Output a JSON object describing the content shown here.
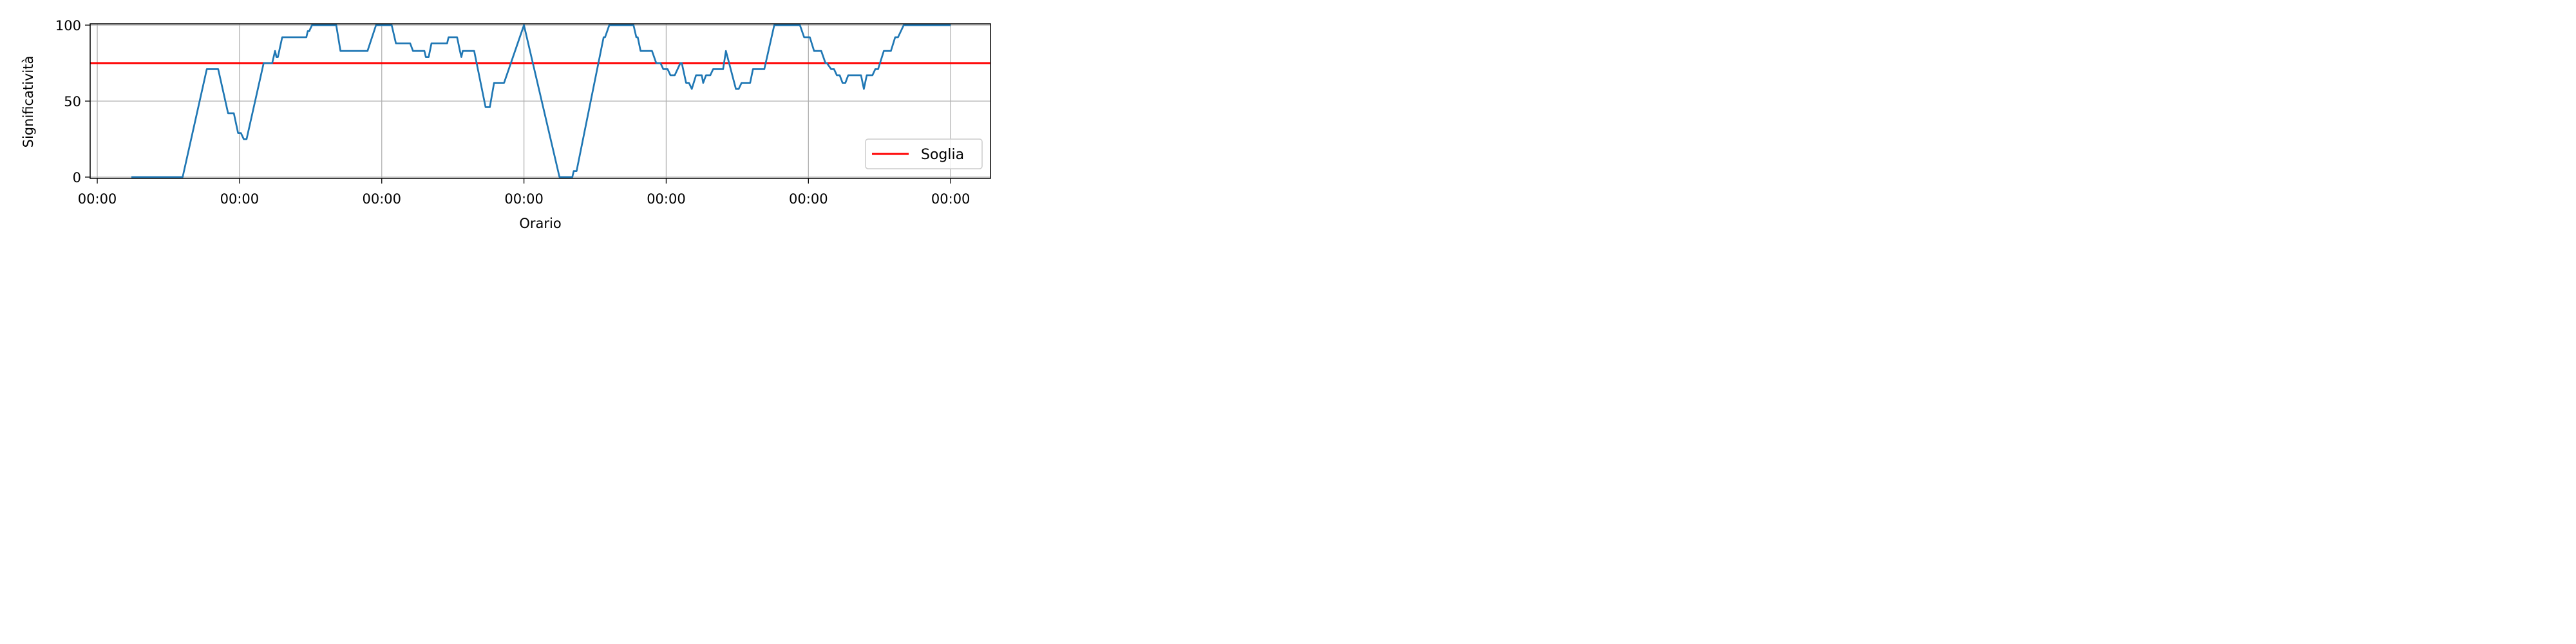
{
  "chart_data": {
    "type": "line",
    "xlabel": "Orario",
    "ylabel": "Significatività",
    "ylim": [
      0,
      100
    ],
    "xlim": [
      -0.05,
      6.28
    ],
    "yticks": [
      0,
      50,
      100
    ],
    "ytick_labels": [
      "0",
      "50",
      "100"
    ],
    "xticks": [
      0,
      1,
      2,
      3,
      4,
      5,
      6
    ],
    "xtick_labels": [
      "00:00",
      "00:00",
      "00:00",
      "00:00",
      "00:00",
      "00:00",
      "00:00"
    ],
    "grid": true,
    "legend_position": "lower-right",
    "threshold": {
      "name": "Soglia",
      "value": 75,
      "color": "#ff0000"
    },
    "series": [
      {
        "color": "#1f77b4",
        "points": [
          [
            0.24,
            0
          ],
          [
            0.6,
            0
          ],
          [
            0.77,
            71
          ],
          [
            0.85,
            71
          ],
          [
            0.92,
            42
          ],
          [
            0.96,
            42
          ],
          [
            0.99,
            29
          ],
          [
            1.01,
            29
          ],
          [
            1.03,
            25
          ],
          [
            1.05,
            25
          ],
          [
            1.17,
            75
          ],
          [
            1.23,
            75
          ],
          [
            1.25,
            83
          ],
          [
            1.26,
            79
          ],
          [
            1.27,
            79
          ],
          [
            1.3,
            92
          ],
          [
            1.47,
            92
          ],
          [
            1.48,
            96
          ],
          [
            1.49,
            96
          ],
          [
            1.51,
            100
          ],
          [
            1.68,
            100
          ],
          [
            1.71,
            83
          ],
          [
            1.9,
            83
          ],
          [
            1.96,
            100
          ],
          [
            2.07,
            100
          ],
          [
            2.1,
            88
          ],
          [
            2.2,
            88
          ],
          [
            2.22,
            83
          ],
          [
            2.3,
            83
          ],
          [
            2.31,
            79
          ],
          [
            2.33,
            79
          ],
          [
            2.35,
            88
          ],
          [
            2.46,
            88
          ],
          [
            2.47,
            92
          ],
          [
            2.53,
            92
          ],
          [
            2.55,
            83
          ],
          [
            2.56,
            79
          ],
          [
            2.57,
            83
          ],
          [
            2.65,
            83
          ],
          [
            2.73,
            46
          ],
          [
            2.76,
            46
          ],
          [
            2.79,
            62
          ],
          [
            2.86,
            62
          ],
          [
            3,
            100
          ],
          [
            3.25,
            0
          ],
          [
            3.34,
            0
          ],
          [
            3.35,
            4
          ],
          [
            3.37,
            4
          ],
          [
            3.56,
            92
          ],
          [
            3.57,
            92
          ],
          [
            3.6,
            100
          ],
          [
            3.77,
            100
          ],
          [
            3.79,
            92
          ],
          [
            3.8,
            92
          ],
          [
            3.82,
            83
          ],
          [
            3.9,
            83
          ],
          [
            3.93,
            75
          ],
          [
            3.96,
            75
          ],
          [
            3.98,
            71
          ],
          [
            4.01,
            71
          ],
          [
            4.03,
            67
          ],
          [
            4.06,
            67
          ],
          [
            4.1,
            75
          ],
          [
            4.11,
            75
          ],
          [
            4.14,
            62
          ],
          [
            4.16,
            62
          ],
          [
            4.18,
            58
          ],
          [
            4.21,
            67
          ],
          [
            4.25,
            67
          ],
          [
            4.26,
            62
          ],
          [
            4.28,
            67
          ],
          [
            4.31,
            67
          ],
          [
            4.33,
            71
          ],
          [
            4.4,
            71
          ],
          [
            4.42,
            83
          ],
          [
            4.49,
            58
          ],
          [
            4.51,
            58
          ],
          [
            4.53,
            62
          ],
          [
            4.59,
            62
          ],
          [
            4.61,
            71
          ],
          [
            4.69,
            71
          ],
          [
            4.76,
            100
          ],
          [
            4.94,
            100
          ],
          [
            4.97,
            92
          ],
          [
            5.01,
            92
          ],
          [
            5.04,
            83
          ],
          [
            5.09,
            83
          ],
          [
            5.12,
            75
          ],
          [
            5.13,
            75
          ],
          [
            5.16,
            71
          ],
          [
            5.18,
            71
          ],
          [
            5.2,
            67
          ],
          [
            5.22,
            67
          ],
          [
            5.24,
            62
          ],
          [
            5.26,
            62
          ],
          [
            5.28,
            67
          ],
          [
            5.37,
            67
          ],
          [
            5.39,
            58
          ],
          [
            5.41,
            67
          ],
          [
            5.45,
            67
          ],
          [
            5.47,
            71
          ],
          [
            5.49,
            71
          ],
          [
            5.53,
            83
          ],
          [
            5.58,
            83
          ],
          [
            5.61,
            92
          ],
          [
            5.63,
            92
          ],
          [
            5.67,
            100
          ],
          [
            6,
            100
          ]
        ]
      }
    ]
  }
}
